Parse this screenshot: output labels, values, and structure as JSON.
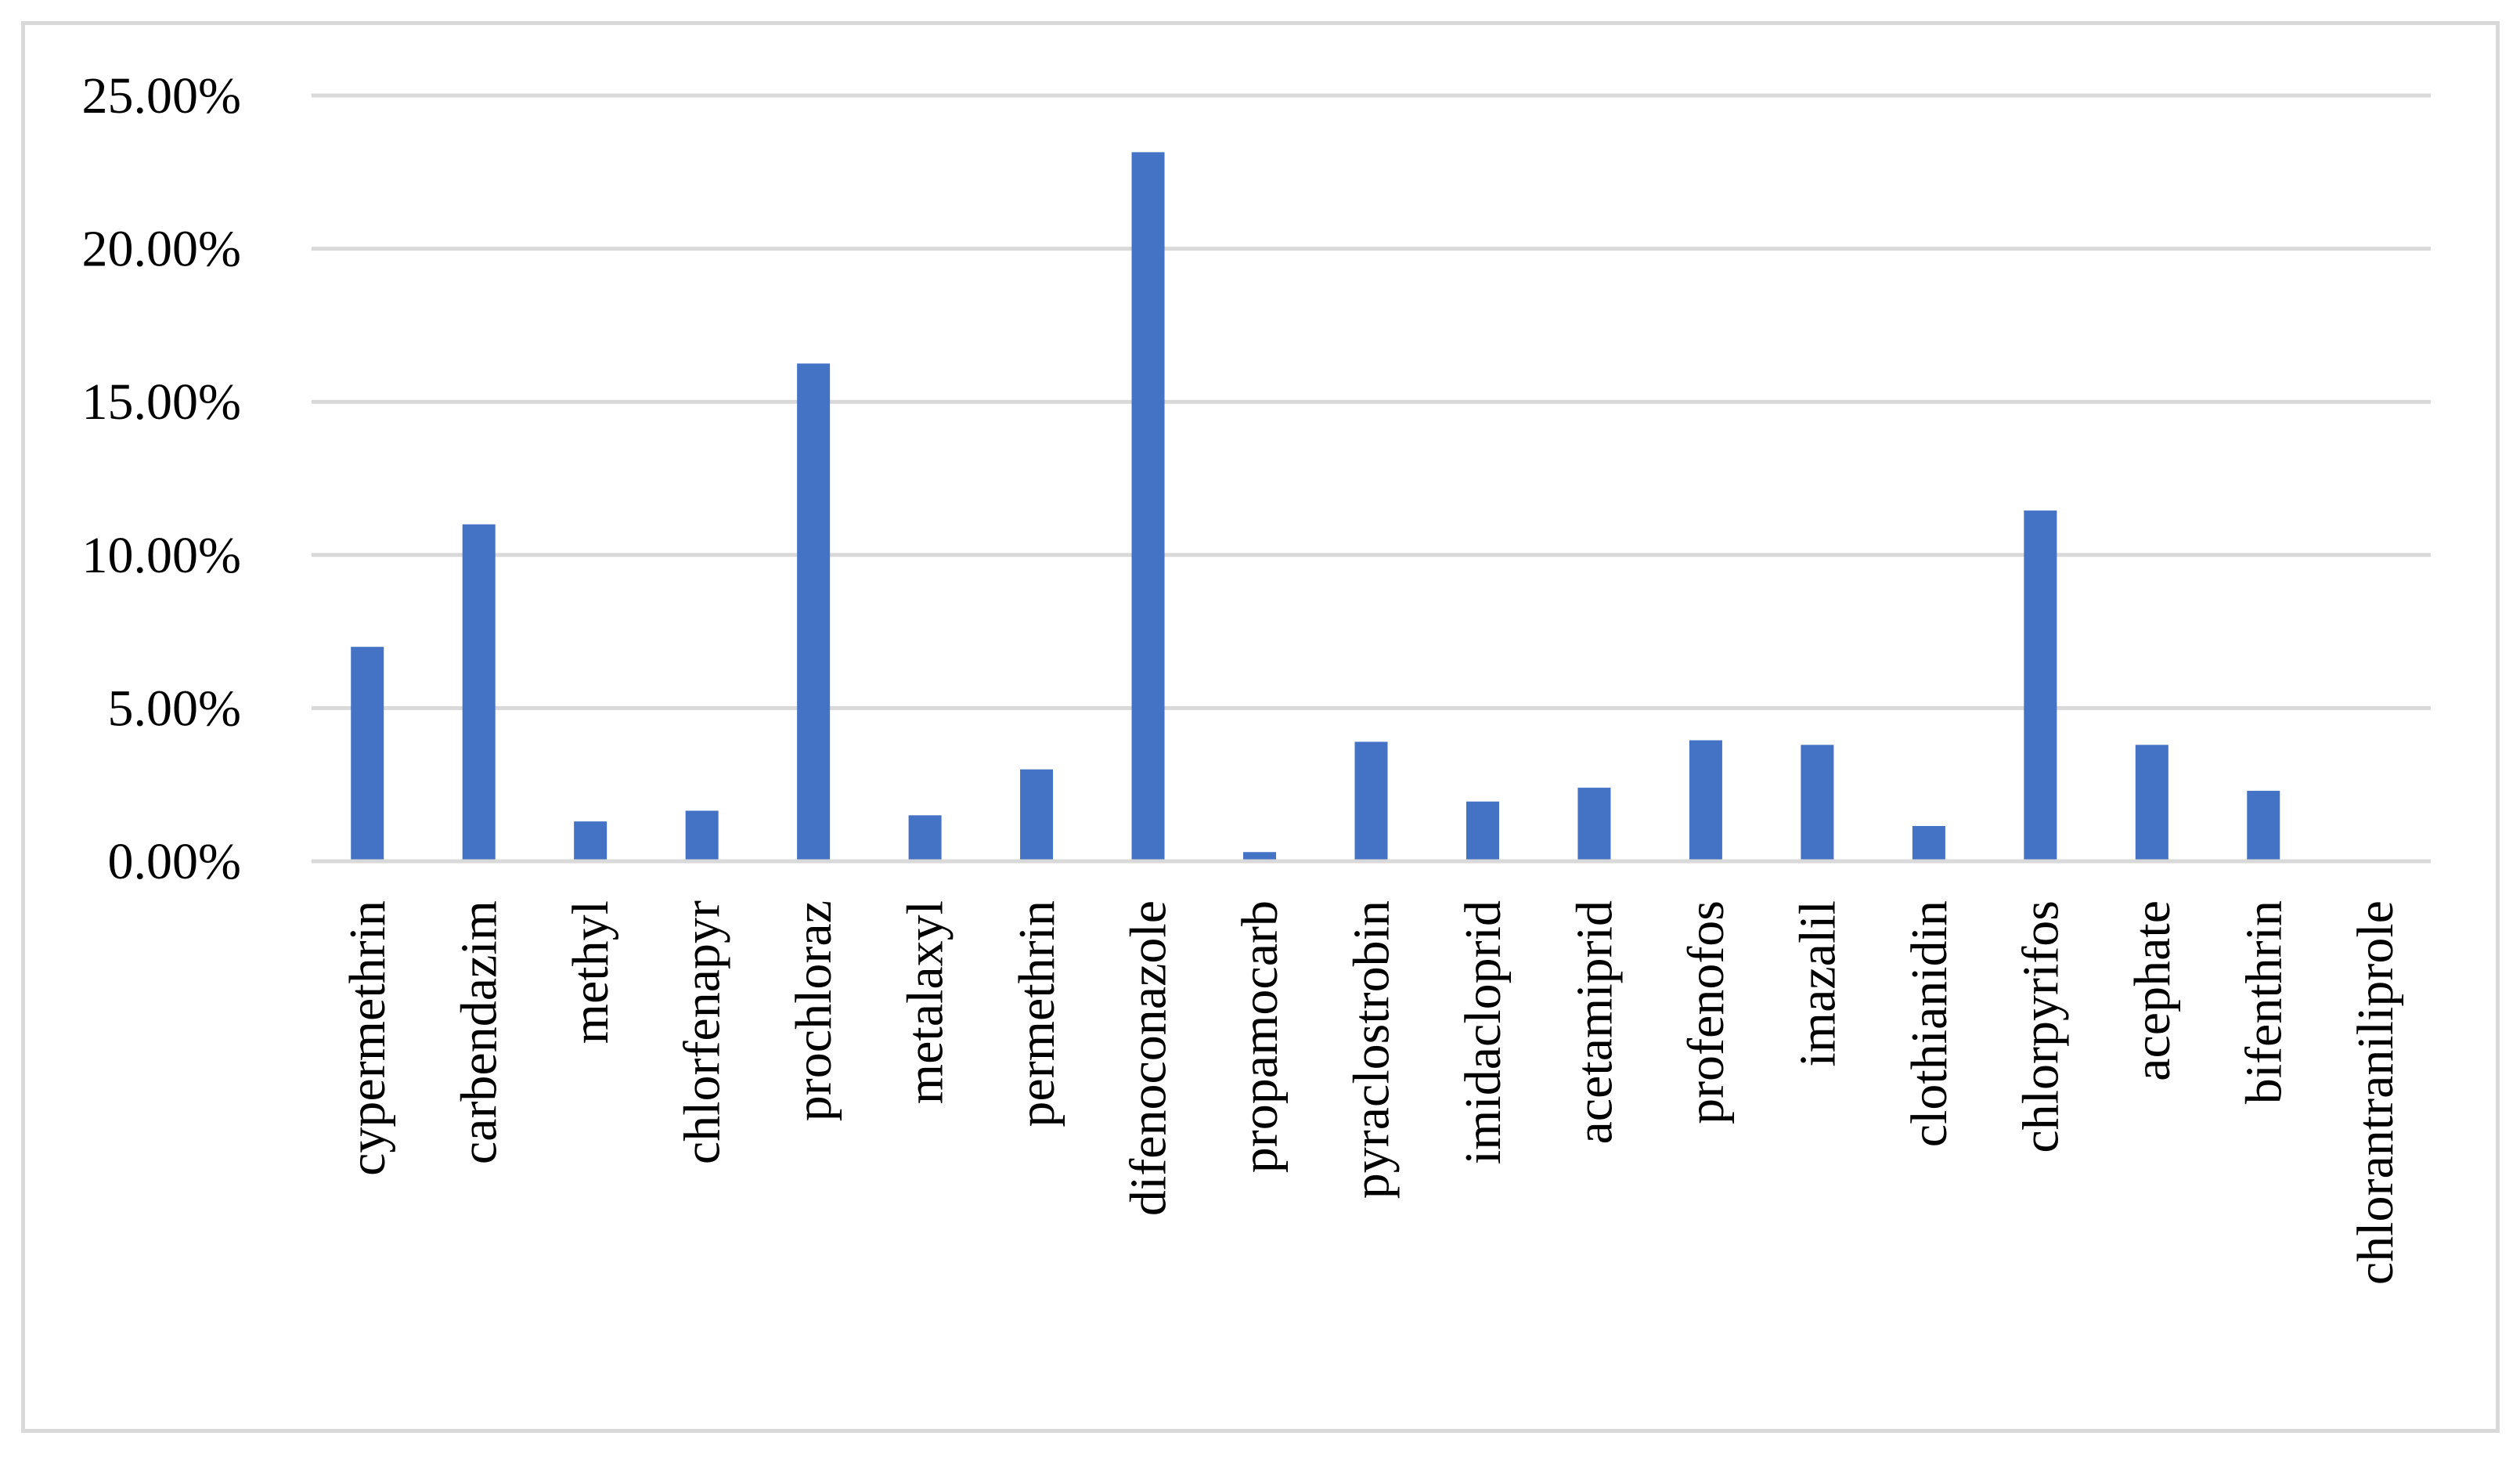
{
  "chart_data": {
    "type": "bar",
    "title": "",
    "xlabel": "",
    "ylabel": "",
    "categories": [
      "cypermethrin",
      "carbendazim",
      "methyl",
      "chlorfenapyr",
      "prochloraz",
      "metalaxyl",
      "permethrin",
      "difenoconazole",
      "propamocarb",
      "pyraclostrobin",
      "imidacloprid",
      "acetamiprid",
      "profenofos",
      "imazalil",
      "clothianidin",
      "chlorpyrifos",
      "acephate",
      "bifenthrin",
      "chlorantraniliprole"
    ],
    "values": [
      7.0,
      11.0,
      1.3,
      1.65,
      16.25,
      1.5,
      3.0,
      23.15,
      0.3,
      3.9,
      1.95,
      2.4,
      3.95,
      3.8,
      1.15,
      11.45,
      3.8,
      2.3,
      0.0
    ],
    "ylim": [
      0,
      25
    ],
    "yticks": [
      0,
      5,
      10,
      15,
      20,
      25
    ],
    "ytick_labels": [
      "0.00%",
      "5.00%",
      "10.00%",
      "15.00%",
      "20.00%",
      "25.00%"
    ],
    "grid": true,
    "legend": "none",
    "bar_color": "#4472c4",
    "grid_color": "#d9d9d9",
    "axis_color": "#d9d9d9"
  }
}
